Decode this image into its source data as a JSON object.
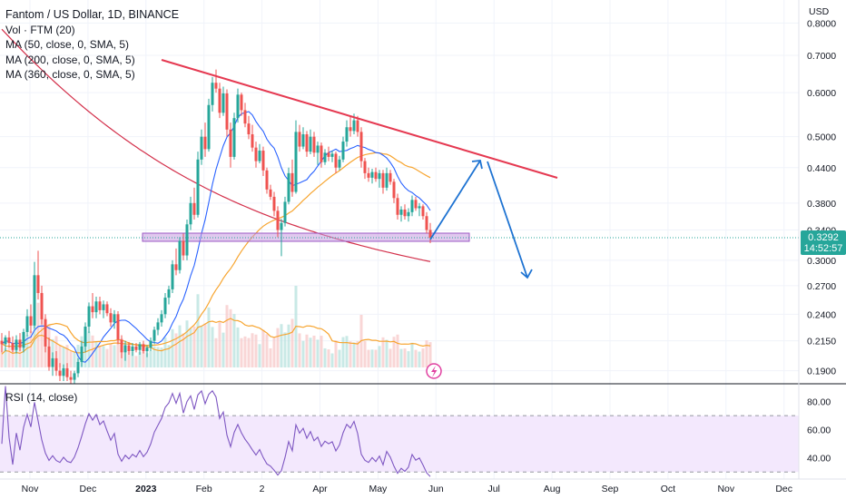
{
  "legend": {
    "title": "Fantom / US Dollar, 1D, BINANCE",
    "lines": [
      "Vol · FTM (20)",
      "MA (50, close, 0, SMA, 5)",
      "MA (200, close, 0, SMA, 5)",
      "MA (360, close, 0, SMA, 5)"
    ]
  },
  "rsi_legend": "RSI (14, close)",
  "price_badge": {
    "price": "0.3292",
    "countdown": "14:52:57"
  },
  "colors": {
    "up": "#26a69a",
    "down": "#ef5350",
    "ma50": "#2962ff",
    "ma200": "#f7a530",
    "ma360": "#d32f4a",
    "trend": "#e53951",
    "arrow": "#1e73d2",
    "zone": "#c79de0",
    "rsi": "#7e57c2",
    "rsi_band": "#f3e8fd",
    "axis_text": "#131722"
  },
  "chart_data": [
    {
      "type": "candlestick",
      "title": "Fantom / US Dollar, 1D, BINANCE",
      "y_axis": {
        "label": "USD",
        "ticks": [
          "0.8000",
          "0.7000",
          "0.6000",
          "0.5000",
          "0.4400",
          "0.3800",
          "0.3400",
          "0.3000",
          "0.2700",
          "0.2400",
          "0.2150",
          "0.1900"
        ],
        "scale": "log",
        "range": [
          0.18,
          0.88
        ]
      },
      "x_axis": {
        "ticks": [
          "Nov",
          "Dec",
          "2023",
          "Feb",
          "2",
          "Apr",
          "May",
          "Jun",
          "Jul",
          "Aug",
          "Sep",
          "Oct",
          "Nov",
          "Dec"
        ]
      },
      "current_price": 0.3292,
      "grid": true,
      "legend_position": "top-left",
      "series": [
        {
          "name": "Vol · FTM (20)",
          "kind": "volume"
        },
        {
          "name": "MA (50, close, 0, SMA, 5)",
          "kind": "line"
        },
        {
          "name": "MA (200, close, 0, SMA, 5)",
          "kind": "line"
        },
        {
          "name": "MA (360, close, 0, SMA, 5)",
          "kind": "line"
        }
      ],
      "annotations": {
        "support_zone": [
          0.325,
          0.336
        ],
        "projection": [
          "up to ~0.46",
          "down to ~0.28"
        ]
      },
      "candles": [
        {
          "x": 2,
          "o": 0.215,
          "h": 0.222,
          "l": 0.205,
          "c": 0.212
        },
        {
          "x": 6,
          "o": 0.212,
          "h": 0.22,
          "l": 0.206,
          "c": 0.218
        },
        {
          "x": 10,
          "o": 0.218,
          "h": 0.224,
          "l": 0.209,
          "c": 0.213
        },
        {
          "x": 14,
          "o": 0.213,
          "h": 0.219,
          "l": 0.205,
          "c": 0.207
        },
        {
          "x": 18,
          "o": 0.207,
          "h": 0.22,
          "l": 0.204,
          "c": 0.216
        },
        {
          "x": 22,
          "o": 0.216,
          "h": 0.222,
          "l": 0.206,
          "c": 0.209
        },
        {
          "x": 26,
          "o": 0.209,
          "h": 0.226,
          "l": 0.205,
          "c": 0.223
        },
        {
          "x": 30,
          "o": 0.223,
          "h": 0.245,
          "l": 0.219,
          "c": 0.238
        },
        {
          "x": 34,
          "o": 0.238,
          "h": 0.25,
          "l": 0.222,
          "c": 0.229
        },
        {
          "x": 38,
          "o": 0.229,
          "h": 0.298,
          "l": 0.226,
          "c": 0.282
        },
        {
          "x": 42,
          "o": 0.282,
          "h": 0.312,
          "l": 0.255,
          "c": 0.262
        },
        {
          "x": 45,
          "o": 0.262,
          "h": 0.27,
          "l": 0.23,
          "c": 0.235
        },
        {
          "x": 48,
          "o": 0.235,
          "h": 0.24,
          "l": 0.205,
          "c": 0.21
        },
        {
          "x": 52,
          "o": 0.21,
          "h": 0.218,
          "l": 0.19,
          "c": 0.193
        },
        {
          "x": 56,
          "o": 0.193,
          "h": 0.205,
          "l": 0.186,
          "c": 0.2
        },
        {
          "x": 60,
          "o": 0.2,
          "h": 0.206,
          "l": 0.186,
          "c": 0.19
        },
        {
          "x": 64,
          "o": 0.19,
          "h": 0.196,
          "l": 0.182,
          "c": 0.186
        },
        {
          "x": 68,
          "o": 0.186,
          "h": 0.195,
          "l": 0.182,
          "c": 0.192
        },
        {
          "x": 72,
          "o": 0.192,
          "h": 0.196,
          "l": 0.182,
          "c": 0.185
        },
        {
          "x": 76,
          "o": 0.185,
          "h": 0.19,
          "l": 0.18,
          "c": 0.183
        },
        {
          "x": 80,
          "o": 0.183,
          "h": 0.19,
          "l": 0.18,
          "c": 0.188
        },
        {
          "x": 84,
          "o": 0.188,
          "h": 0.2,
          "l": 0.185,
          "c": 0.197
        },
        {
          "x": 88,
          "o": 0.197,
          "h": 0.215,
          "l": 0.193,
          "c": 0.21
        },
        {
          "x": 92,
          "o": 0.21,
          "h": 0.232,
          "l": 0.205,
          "c": 0.228
        },
        {
          "x": 96,
          "o": 0.228,
          "h": 0.252,
          "l": 0.222,
          "c": 0.248
        },
        {
          "x": 100,
          "o": 0.248,
          "h": 0.262,
          "l": 0.236,
          "c": 0.242
        },
        {
          "x": 104,
          "o": 0.242,
          "h": 0.258,
          "l": 0.236,
          "c": 0.253
        },
        {
          "x": 108,
          "o": 0.253,
          "h": 0.258,
          "l": 0.24,
          "c": 0.244
        },
        {
          "x": 112,
          "o": 0.244,
          "h": 0.254,
          "l": 0.236,
          "c": 0.25
        },
        {
          "x": 116,
          "o": 0.25,
          "h": 0.253,
          "l": 0.238,
          "c": 0.241
        },
        {
          "x": 120,
          "o": 0.241,
          "h": 0.246,
          "l": 0.228,
          "c": 0.232
        },
        {
          "x": 124,
          "o": 0.232,
          "h": 0.244,
          "l": 0.226,
          "c": 0.24
        },
        {
          "x": 128,
          "o": 0.24,
          "h": 0.243,
          "l": 0.212,
          "c": 0.216
        },
        {
          "x": 132,
          "o": 0.216,
          "h": 0.22,
          "l": 0.2,
          "c": 0.205
        },
        {
          "x": 136,
          "o": 0.205,
          "h": 0.215,
          "l": 0.198,
          "c": 0.211
        },
        {
          "x": 140,
          "o": 0.211,
          "h": 0.214,
          "l": 0.203,
          "c": 0.206
        },
        {
          "x": 144,
          "o": 0.206,
          "h": 0.213,
          "l": 0.202,
          "c": 0.21
        },
        {
          "x": 148,
          "o": 0.21,
          "h": 0.213,
          "l": 0.205,
          "c": 0.207
        },
        {
          "x": 152,
          "o": 0.207,
          "h": 0.214,
          "l": 0.203,
          "c": 0.212
        },
        {
          "x": 156,
          "o": 0.212,
          "h": 0.215,
          "l": 0.204,
          "c": 0.206
        },
        {
          "x": 160,
          "o": 0.206,
          "h": 0.211,
          "l": 0.201,
          "c": 0.209
        },
        {
          "x": 164,
          "o": 0.209,
          "h": 0.218,
          "l": 0.206,
          "c": 0.215
        },
        {
          "x": 168,
          "o": 0.215,
          "h": 0.228,
          "l": 0.212,
          "c": 0.225
        },
        {
          "x": 172,
          "o": 0.225,
          "h": 0.236,
          "l": 0.22,
          "c": 0.232
        },
        {
          "x": 176,
          "o": 0.232,
          "h": 0.244,
          "l": 0.228,
          "c": 0.24
        },
        {
          "x": 180,
          "o": 0.24,
          "h": 0.262,
          "l": 0.236,
          "c": 0.257
        },
        {
          "x": 184,
          "o": 0.257,
          "h": 0.27,
          "l": 0.25,
          "c": 0.266
        },
        {
          "x": 188,
          "o": 0.266,
          "h": 0.3,
          "l": 0.262,
          "c": 0.295
        },
        {
          "x": 192,
          "o": 0.295,
          "h": 0.315,
          "l": 0.282,
          "c": 0.288
        },
        {
          "x": 196,
          "o": 0.288,
          "h": 0.33,
          "l": 0.284,
          "c": 0.325
        },
        {
          "x": 200,
          "o": 0.325,
          "h": 0.335,
          "l": 0.3,
          "c": 0.306
        },
        {
          "x": 204,
          "o": 0.306,
          "h": 0.355,
          "l": 0.3,
          "c": 0.348
        },
        {
          "x": 208,
          "o": 0.348,
          "h": 0.39,
          "l": 0.34,
          "c": 0.38
        },
        {
          "x": 212,
          "o": 0.38,
          "h": 0.405,
          "l": 0.355,
          "c": 0.362
        },
        {
          "x": 216,
          "o": 0.362,
          "h": 0.47,
          "l": 0.358,
          "c": 0.455
        },
        {
          "x": 220,
          "o": 0.455,
          "h": 0.515,
          "l": 0.445,
          "c": 0.5
        },
        {
          "x": 224,
          "o": 0.5,
          "h": 0.53,
          "l": 0.46,
          "c": 0.475
        },
        {
          "x": 228,
          "o": 0.475,
          "h": 0.585,
          "l": 0.47,
          "c": 0.57
        },
        {
          "x": 232,
          "o": 0.57,
          "h": 0.64,
          "l": 0.555,
          "c": 0.625
        },
        {
          "x": 236,
          "o": 0.625,
          "h": 0.66,
          "l": 0.6,
          "c": 0.61
        },
        {
          "x": 240,
          "o": 0.61,
          "h": 0.625,
          "l": 0.54,
          "c": 0.552
        },
        {
          "x": 244,
          "o": 0.552,
          "h": 0.615,
          "l": 0.545,
          "c": 0.598
        },
        {
          "x": 248,
          "o": 0.598,
          "h": 0.608,
          "l": 0.5,
          "c": 0.515
        },
        {
          "x": 252,
          "o": 0.515,
          "h": 0.53,
          "l": 0.44,
          "c": 0.46
        },
        {
          "x": 256,
          "o": 0.46,
          "h": 0.552,
          "l": 0.455,
          "c": 0.54
        },
        {
          "x": 260,
          "o": 0.54,
          "h": 0.61,
          "l": 0.53,
          "c": 0.595
        },
        {
          "x": 264,
          "o": 0.595,
          "h": 0.6,
          "l": 0.545,
          "c": 0.558
        },
        {
          "x": 268,
          "o": 0.558,
          "h": 0.575,
          "l": 0.52,
          "c": 0.528
        },
        {
          "x": 272,
          "o": 0.528,
          "h": 0.545,
          "l": 0.495,
          "c": 0.505
        },
        {
          "x": 276,
          "o": 0.505,
          "h": 0.525,
          "l": 0.47,
          "c": 0.478
        },
        {
          "x": 280,
          "o": 0.478,
          "h": 0.49,
          "l": 0.44,
          "c": 0.452
        },
        {
          "x": 284,
          "o": 0.452,
          "h": 0.485,
          "l": 0.448,
          "c": 0.472
        },
        {
          "x": 288,
          "o": 0.472,
          "h": 0.48,
          "l": 0.425,
          "c": 0.435
        },
        {
          "x": 292,
          "o": 0.435,
          "h": 0.44,
          "l": 0.395,
          "c": 0.402
        },
        {
          "x": 296,
          "o": 0.402,
          "h": 0.41,
          "l": 0.385,
          "c": 0.39
        },
        {
          "x": 300,
          "o": 0.39,
          "h": 0.398,
          "l": 0.36,
          "c": 0.368
        },
        {
          "x": 304,
          "o": 0.368,
          "h": 0.375,
          "l": 0.33,
          "c": 0.34
        },
        {
          "x": 308,
          "o": 0.34,
          "h": 0.356,
          "l": 0.305,
          "c": 0.35
        },
        {
          "x": 312,
          "o": 0.35,
          "h": 0.39,
          "l": 0.345,
          "c": 0.382
        },
        {
          "x": 316,
          "o": 0.382,
          "h": 0.44,
          "l": 0.378,
          "c": 0.43
        },
        {
          "x": 320,
          "o": 0.43,
          "h": 0.455,
          "l": 0.39,
          "c": 0.398
        },
        {
          "x": 324,
          "o": 0.398,
          "h": 0.535,
          "l": 0.395,
          "c": 0.51
        },
        {
          "x": 328,
          "o": 0.51,
          "h": 0.525,
          "l": 0.47,
          "c": 0.48
        },
        {
          "x": 332,
          "o": 0.48,
          "h": 0.52,
          "l": 0.475,
          "c": 0.505
        },
        {
          "x": 336,
          "o": 0.505,
          "h": 0.512,
          "l": 0.46,
          "c": 0.47
        },
        {
          "x": 340,
          "o": 0.47,
          "h": 0.515,
          "l": 0.465,
          "c": 0.5
        },
        {
          "x": 344,
          "o": 0.5,
          "h": 0.51,
          "l": 0.46,
          "c": 0.468
        },
        {
          "x": 348,
          "o": 0.468,
          "h": 0.49,
          "l": 0.445,
          "c": 0.482
        },
        {
          "x": 352,
          "o": 0.482,
          "h": 0.488,
          "l": 0.44,
          "c": 0.45
        },
        {
          "x": 356,
          "o": 0.45,
          "h": 0.475,
          "l": 0.445,
          "c": 0.468
        },
        {
          "x": 360,
          "o": 0.468,
          "h": 0.48,
          "l": 0.452,
          "c": 0.46
        },
        {
          "x": 364,
          "o": 0.46,
          "h": 0.472,
          "l": 0.45,
          "c": 0.466
        },
        {
          "x": 368,
          "o": 0.466,
          "h": 0.47,
          "l": 0.43,
          "c": 0.44
        },
        {
          "x": 372,
          "o": 0.44,
          "h": 0.462,
          "l": 0.435,
          "c": 0.455
        },
        {
          "x": 376,
          "o": 0.455,
          "h": 0.5,
          "l": 0.45,
          "c": 0.49
        },
        {
          "x": 380,
          "o": 0.49,
          "h": 0.535,
          "l": 0.48,
          "c": 0.52
        },
        {
          "x": 384,
          "o": 0.52,
          "h": 0.545,
          "l": 0.5,
          "c": 0.512
        },
        {
          "x": 388,
          "o": 0.512,
          "h": 0.55,
          "l": 0.505,
          "c": 0.535
        },
        {
          "x": 392,
          "o": 0.535,
          "h": 0.545,
          "l": 0.5,
          "c": 0.51
        },
        {
          "x": 396,
          "o": 0.51,
          "h": 0.52,
          "l": 0.44,
          "c": 0.452
        },
        {
          "x": 400,
          "o": 0.452,
          "h": 0.458,
          "l": 0.42,
          "c": 0.43
        },
        {
          "x": 404,
          "o": 0.43,
          "h": 0.44,
          "l": 0.415,
          "c": 0.422
        },
        {
          "x": 408,
          "o": 0.422,
          "h": 0.438,
          "l": 0.412,
          "c": 0.432
        },
        {
          "x": 412,
          "o": 0.432,
          "h": 0.44,
          "l": 0.415,
          "c": 0.42
        },
        {
          "x": 416,
          "o": 0.42,
          "h": 0.436,
          "l": 0.405,
          "c": 0.43
        },
        {
          "x": 420,
          "o": 0.43,
          "h": 0.436,
          "l": 0.395,
          "c": 0.405
        },
        {
          "x": 424,
          "o": 0.405,
          "h": 0.44,
          "l": 0.4,
          "c": 0.43
        },
        {
          "x": 428,
          "o": 0.43,
          "h": 0.436,
          "l": 0.41,
          "c": 0.415
        },
        {
          "x": 432,
          "o": 0.415,
          "h": 0.42,
          "l": 0.38,
          "c": 0.388
        },
        {
          "x": 436,
          "o": 0.388,
          "h": 0.395,
          "l": 0.355,
          "c": 0.362
        },
        {
          "x": 440,
          "o": 0.362,
          "h": 0.375,
          "l": 0.352,
          "c": 0.37
        },
        {
          "x": 444,
          "o": 0.37,
          "h": 0.378,
          "l": 0.355,
          "c": 0.36
        },
        {
          "x": 448,
          "o": 0.36,
          "h": 0.372,
          "l": 0.352,
          "c": 0.366
        },
        {
          "x": 452,
          "o": 0.366,
          "h": 0.392,
          "l": 0.36,
          "c": 0.385
        },
        {
          "x": 456,
          "o": 0.385,
          "h": 0.39,
          "l": 0.368,
          "c": 0.372
        },
        {
          "x": 460,
          "o": 0.372,
          "h": 0.38,
          "l": 0.36,
          "c": 0.375
        },
        {
          "x": 464,
          "o": 0.375,
          "h": 0.378,
          "l": 0.355,
          "c": 0.36
        },
        {
          "x": 468,
          "o": 0.36,
          "h": 0.366,
          "l": 0.335,
          "c": 0.34
        },
        {
          "x": 472,
          "o": 0.34,
          "h": 0.35,
          "l": 0.322,
          "c": 0.3292
        }
      ]
    },
    {
      "type": "line",
      "title": "RSI (14, close)",
      "y_axis": {
        "ticks": [
          "80.00",
          "60.00",
          "40.00"
        ],
        "range": [
          25,
          92
        ]
      },
      "bands": [
        30,
        70
      ],
      "series": [
        {
          "name": "RSI (14, close)"
        }
      ]
    }
  ]
}
